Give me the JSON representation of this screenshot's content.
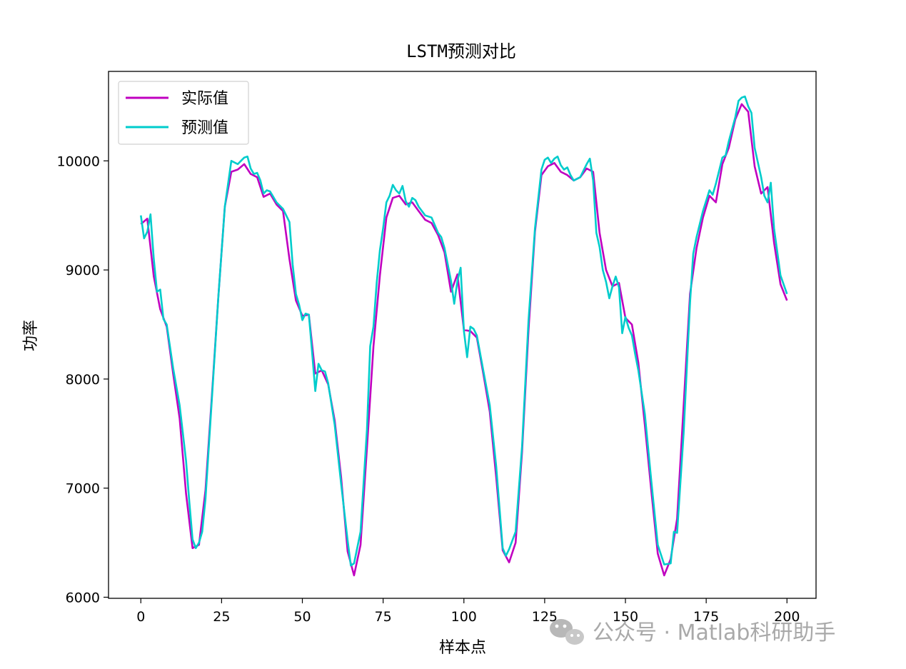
{
  "chart_data": {
    "type": "line",
    "title": "LSTM预测对比",
    "xlabel": "样本点",
    "ylabel": "功率",
    "xlim": [
      -10,
      209
    ],
    "ylim": [
      5990,
      10820
    ],
    "xticks": [
      0,
      25,
      50,
      75,
      100,
      125,
      150,
      175,
      200
    ],
    "yticks": [
      6000,
      7000,
      8000,
      9000,
      10000
    ],
    "grid": false,
    "legend_position": "top-left",
    "series": [
      {
        "name": "实际值",
        "color": "#c000c0",
        "points": [
          [
            0,
            9420
          ],
          [
            2,
            9470
          ],
          [
            4,
            8940
          ],
          [
            6,
            8640
          ],
          [
            8,
            8480
          ],
          [
            10,
            8050
          ],
          [
            12,
            7640
          ],
          [
            14,
            6950
          ],
          [
            16,
            6450
          ],
          [
            18,
            6480
          ],
          [
            20,
            6980
          ],
          [
            22,
            7850
          ],
          [
            24,
            8760
          ],
          [
            26,
            9580
          ],
          [
            28,
            9900
          ],
          [
            30,
            9920
          ],
          [
            32,
            9970
          ],
          [
            34,
            9880
          ],
          [
            36,
            9850
          ],
          [
            38,
            9670
          ],
          [
            40,
            9700
          ],
          [
            42,
            9600
          ],
          [
            44,
            9540
          ],
          [
            46,
            9100
          ],
          [
            48,
            8720
          ],
          [
            50,
            8580
          ],
          [
            52,
            8590
          ],
          [
            54,
            8050
          ],
          [
            56,
            8080
          ],
          [
            58,
            7950
          ],
          [
            60,
            7620
          ],
          [
            62,
            7100
          ],
          [
            64,
            6420
          ],
          [
            66,
            6200
          ],
          [
            68,
            6480
          ],
          [
            70,
            7370
          ],
          [
            72,
            8300
          ],
          [
            74,
            8950
          ],
          [
            76,
            9480
          ],
          [
            78,
            9660
          ],
          [
            80,
            9680
          ],
          [
            82,
            9600
          ],
          [
            84,
            9620
          ],
          [
            86,
            9540
          ],
          [
            88,
            9460
          ],
          [
            90,
            9430
          ],
          [
            92,
            9320
          ],
          [
            94,
            9160
          ],
          [
            96,
            8800
          ],
          [
            98,
            8960
          ],
          [
            100,
            8450
          ],
          [
            102,
            8440
          ],
          [
            104,
            8380
          ],
          [
            106,
            8050
          ],
          [
            108,
            7700
          ],
          [
            110,
            7100
          ],
          [
            112,
            6430
          ],
          [
            114,
            6320
          ],
          [
            116,
            6500
          ],
          [
            118,
            7330
          ],
          [
            120,
            8450
          ],
          [
            122,
            9350
          ],
          [
            124,
            9870
          ],
          [
            126,
            9950
          ],
          [
            128,
            9980
          ],
          [
            130,
            9900
          ],
          [
            132,
            9870
          ],
          [
            134,
            9820
          ],
          [
            136,
            9850
          ],
          [
            138,
            9930
          ],
          [
            140,
            9900
          ],
          [
            142,
            9340
          ],
          [
            144,
            9000
          ],
          [
            146,
            8850
          ],
          [
            148,
            8880
          ],
          [
            150,
            8560
          ],
          [
            152,
            8500
          ],
          [
            154,
            8150
          ],
          [
            156,
            7580
          ],
          [
            158,
            6980
          ],
          [
            160,
            6400
          ],
          [
            162,
            6200
          ],
          [
            164,
            6350
          ],
          [
            166,
            6720
          ],
          [
            168,
            7750
          ],
          [
            170,
            8780
          ],
          [
            172,
            9200
          ],
          [
            174,
            9480
          ],
          [
            176,
            9680
          ],
          [
            178,
            9620
          ],
          [
            180,
            9970
          ],
          [
            182,
            10120
          ],
          [
            184,
            10380
          ],
          [
            186,
            10520
          ],
          [
            188,
            10450
          ],
          [
            190,
            9950
          ],
          [
            192,
            9700
          ],
          [
            194,
            9760
          ],
          [
            196,
            9250
          ],
          [
            198,
            8870
          ],
          [
            200,
            8720
          ]
        ]
      },
      {
        "name": "预测值",
        "color": "#00cccc",
        "points": [
          [
            0,
            9500
          ],
          [
            1,
            9290
          ],
          [
            2,
            9350
          ],
          [
            3,
            9510
          ],
          [
            4,
            9100
          ],
          [
            5,
            8800
          ],
          [
            6,
            8820
          ],
          [
            7,
            8550
          ],
          [
            8,
            8500
          ],
          [
            10,
            8100
          ],
          [
            12,
            7760
          ],
          [
            14,
            7250
          ],
          [
            15,
            6880
          ],
          [
            16,
            6530
          ],
          [
            17,
            6450
          ],
          [
            18,
            6500
          ],
          [
            19,
            6600
          ],
          [
            20,
            6900
          ],
          [
            22,
            7820
          ],
          [
            24,
            8760
          ],
          [
            26,
            9580
          ],
          [
            28,
            10000
          ],
          [
            30,
            9970
          ],
          [
            31,
            10000
          ],
          [
            32,
            10030
          ],
          [
            33,
            10040
          ],
          [
            34,
            9930
          ],
          [
            35,
            9880
          ],
          [
            36,
            9890
          ],
          [
            37,
            9820
          ],
          [
            38,
            9700
          ],
          [
            39,
            9730
          ],
          [
            40,
            9720
          ],
          [
            42,
            9620
          ],
          [
            44,
            9560
          ],
          [
            46,
            9440
          ],
          [
            47,
            9050
          ],
          [
            48,
            8780
          ],
          [
            49,
            8680
          ],
          [
            50,
            8540
          ],
          [
            51,
            8600
          ],
          [
            52,
            8590
          ],
          [
            53,
            8250
          ],
          [
            54,
            7890
          ],
          [
            55,
            8140
          ],
          [
            56,
            8080
          ],
          [
            57,
            8070
          ],
          [
            58,
            7960
          ],
          [
            60,
            7580
          ],
          [
            62,
            7040
          ],
          [
            64,
            6520
          ],
          [
            65,
            6290
          ],
          [
            66,
            6310
          ],
          [
            68,
            6600
          ],
          [
            70,
            7540
          ],
          [
            71,
            8300
          ],
          [
            72,
            8480
          ],
          [
            73,
            8880
          ],
          [
            74,
            9180
          ],
          [
            75,
            9380
          ],
          [
            76,
            9620
          ],
          [
            77,
            9680
          ],
          [
            78,
            9780
          ],
          [
            79,
            9730
          ],
          [
            80,
            9700
          ],
          [
            81,
            9770
          ],
          [
            82,
            9630
          ],
          [
            83,
            9580
          ],
          [
            84,
            9660
          ],
          [
            85,
            9640
          ],
          [
            86,
            9580
          ],
          [
            88,
            9500
          ],
          [
            90,
            9480
          ],
          [
            92,
            9340
          ],
          [
            93,
            9300
          ],
          [
            94,
            9200
          ],
          [
            96,
            8900
          ],
          [
            97,
            8690
          ],
          [
            98,
            8900
          ],
          [
            99,
            9020
          ],
          [
            100,
            8440
          ],
          [
            101,
            8200
          ],
          [
            102,
            8480
          ],
          [
            103,
            8460
          ],
          [
            104,
            8400
          ],
          [
            106,
            8080
          ],
          [
            108,
            7760
          ],
          [
            110,
            7200
          ],
          [
            112,
            6450
          ],
          [
            113,
            6380
          ],
          [
            114,
            6440
          ],
          [
            116,
            6600
          ],
          [
            118,
            7380
          ],
          [
            120,
            8540
          ],
          [
            122,
            9380
          ],
          [
            124,
            9920
          ],
          [
            125,
            10010
          ],
          [
            126,
            10030
          ],
          [
            127,
            9980
          ],
          [
            128,
            10020
          ],
          [
            129,
            10040
          ],
          [
            130,
            9960
          ],
          [
            131,
            9920
          ],
          [
            132,
            9940
          ],
          [
            133,
            9870
          ],
          [
            134,
            9820
          ],
          [
            136,
            9850
          ],
          [
            138,
            9970
          ],
          [
            139,
            10020
          ],
          [
            140,
            9820
          ],
          [
            141,
            9340
          ],
          [
            142,
            9210
          ],
          [
            143,
            9000
          ],
          [
            144,
            8890
          ],
          [
            145,
            8740
          ],
          [
            146,
            8850
          ],
          [
            147,
            8940
          ],
          [
            148,
            8840
          ],
          [
            149,
            8420
          ],
          [
            150,
            8570
          ],
          [
            151,
            8470
          ],
          [
            152,
            8400
          ],
          [
            153,
            8230
          ],
          [
            154,
            8080
          ],
          [
            156,
            7680
          ],
          [
            158,
            7070
          ],
          [
            160,
            6480
          ],
          [
            162,
            6300
          ],
          [
            164,
            6310
          ],
          [
            165,
            6600
          ],
          [
            166,
            6590
          ],
          [
            168,
            7500
          ],
          [
            170,
            8700
          ],
          [
            171,
            9150
          ],
          [
            172,
            9300
          ],
          [
            174,
            9540
          ],
          [
            176,
            9730
          ],
          [
            177,
            9690
          ],
          [
            178,
            9790
          ],
          [
            180,
            10030
          ],
          [
            181,
            10050
          ],
          [
            182,
            10180
          ],
          [
            184,
            10400
          ],
          [
            185,
            10550
          ],
          [
            186,
            10580
          ],
          [
            187,
            10590
          ],
          [
            188,
            10500
          ],
          [
            189,
            10440
          ],
          [
            190,
            10120
          ],
          [
            192,
            9850
          ],
          [
            193,
            9680
          ],
          [
            194,
            9620
          ],
          [
            195,
            9800
          ],
          [
            196,
            9380
          ],
          [
            198,
            8950
          ],
          [
            200,
            8780
          ]
        ]
      }
    ]
  },
  "watermark": {
    "text": "公众号 · Matlab科研助手",
    "icon": "wechat-icon"
  }
}
